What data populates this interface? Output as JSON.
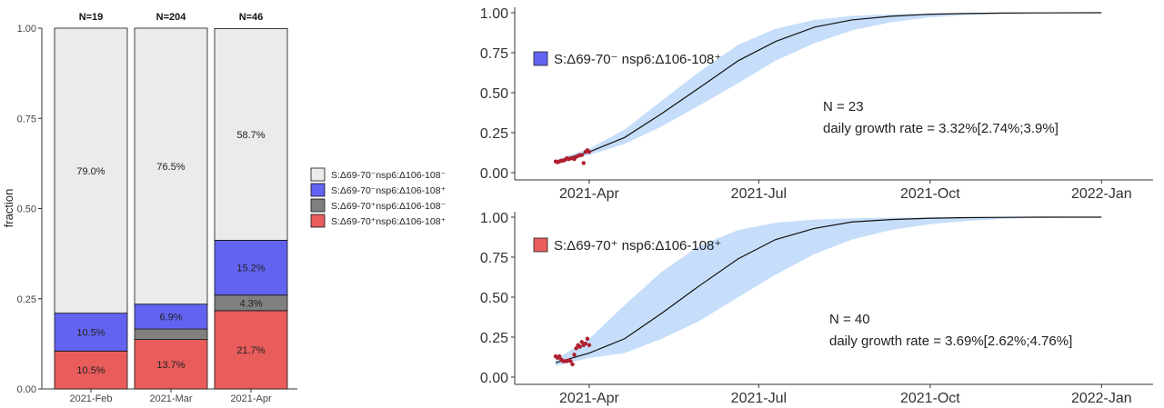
{
  "chart_data": [
    {
      "type": "bar",
      "stacked": true,
      "ylabel": "fraction",
      "ylim": [
        0,
        1
      ],
      "yticks": [
        "0.00",
        "0.25",
        "0.50",
        "0.75",
        "1.00"
      ],
      "categories": [
        "2021-Feb",
        "2021-Mar",
        "2021-Apr"
      ],
      "totals": [
        "N=19",
        "N=204",
        "N=46"
      ],
      "series": [
        {
          "name": "S:Δ69-70⁺nsp6:Δ106-108⁺",
          "color": "#e85c5c",
          "values": [
            0.105,
            0.137,
            0.217
          ],
          "labels": [
            "10.5%",
            "13.7%",
            "21.7%"
          ]
        },
        {
          "name": "S:Δ69-70⁺nsp6:Δ106-108⁻",
          "color": "#808080",
          "values": [
            0.0,
            0.029,
            0.043
          ],
          "labels": [
            "",
            "",
            "4.3%"
          ]
        },
        {
          "name": "S:Δ69-70⁻nsp6:Δ106-108⁺",
          "color": "#6363f2",
          "values": [
            0.105,
            0.069,
            0.152
          ],
          "labels": [
            "10.5%",
            "6.9%",
            "15.2%"
          ]
        },
        {
          "name": "S:Δ69-70⁻nsp6:Δ106-108⁻",
          "color": "#ebebeb",
          "values": [
            0.79,
            0.765,
            0.587
          ],
          "labels": [
            "79.0%",
            "76.5%",
            "58.7%"
          ]
        }
      ],
      "legend_order": [
        3,
        2,
        1,
        0
      ],
      "legend_position": "right"
    },
    {
      "type": "line",
      "legend_label": "S:Δ69-70⁻ nsp6:Δ106-108⁺",
      "legend_color": "#6363f2",
      "annotation_n": "N = 23",
      "annotation_rate": "daily growth rate = 3.32%[2.74%;3.9%]",
      "xlim": [
        "2021-02-20",
        "2022-01-15"
      ],
      "ylim": [
        0,
        1
      ],
      "yticks": [
        "0.00",
        "0.25",
        "0.50",
        "0.75",
        "1.00"
      ],
      "xticks": [
        {
          "date": "2021-04-01",
          "label": "2021-Apr"
        },
        {
          "date": "2021-07-01",
          "label": "2021-Jul"
        },
        {
          "date": "2021-10-01",
          "label": "2021-Oct"
        },
        {
          "date": "2022-01-01",
          "label": "2022-Jan"
        }
      ],
      "fit_curve": {
        "x": [
          "2021-03-14",
          "2021-04-01",
          "2021-04-20",
          "2021-05-10",
          "2021-05-30",
          "2021-06-20",
          "2021-07-10",
          "2021-07-31",
          "2021-08-20",
          "2021-09-10",
          "2021-09-30",
          "2021-10-20",
          "2021-11-10",
          "2021-12-01",
          "2022-01-01"
        ],
        "y": [
          0.07,
          0.13,
          0.22,
          0.37,
          0.53,
          0.7,
          0.82,
          0.91,
          0.955,
          0.978,
          0.99,
          0.995,
          0.998,
          0.999,
          1.0
        ]
      },
      "ci_upper": [
        0.08,
        0.15,
        0.27,
        0.45,
        0.63,
        0.8,
        0.9,
        0.955,
        0.98,
        0.99,
        0.996,
        0.998,
        0.999,
        1.0,
        1.0
      ],
      "ci_lower": [
        0.06,
        0.11,
        0.18,
        0.29,
        0.42,
        0.56,
        0.7,
        0.81,
        0.89,
        0.94,
        0.97,
        0.985,
        0.994,
        0.998,
        1.0
      ],
      "observed": {
        "x": [
          "2021-03-14",
          "2021-03-15",
          "2021-03-16",
          "2021-03-17",
          "2021-03-18",
          "2021-03-19",
          "2021-03-20",
          "2021-03-21",
          "2021-03-22",
          "2021-03-23",
          "2021-03-24",
          "2021-03-25",
          "2021-03-26",
          "2021-03-27",
          "2021-03-28",
          "2021-03-29",
          "2021-03-30",
          "2021-03-31",
          "2021-04-01"
        ],
        "y": [
          0.07,
          0.065,
          0.07,
          0.075,
          0.075,
          0.08,
          0.09,
          0.085,
          0.09,
          0.09,
          0.085,
          0.1,
          0.105,
          0.11,
          0.11,
          0.06,
          0.13,
          0.14,
          0.13
        ]
      }
    },
    {
      "type": "line",
      "legend_label": "S:Δ69-70⁺ nsp6:Δ106-108⁺",
      "legend_color": "#e85c5c",
      "annotation_n": "N = 40",
      "annotation_rate": "daily growth rate = 3.69%[2.62%;4.76%]",
      "xlim": [
        "2021-02-20",
        "2022-01-15"
      ],
      "ylim": [
        0,
        1
      ],
      "yticks": [
        "0.00",
        "0.25",
        "0.50",
        "0.75",
        "1.00"
      ],
      "xticks": [
        {
          "date": "2021-04-01",
          "label": "2021-Apr"
        },
        {
          "date": "2021-07-01",
          "label": "2021-Jul"
        },
        {
          "date": "2021-10-01",
          "label": "2021-Oct"
        },
        {
          "date": "2022-01-01",
          "label": "2022-Jan"
        }
      ],
      "fit_curve": {
        "x": [
          "2021-03-14",
          "2021-04-01",
          "2021-04-20",
          "2021-05-10",
          "2021-05-30",
          "2021-06-20",
          "2021-07-10",
          "2021-07-31",
          "2021-08-20",
          "2021-09-10",
          "2021-09-30",
          "2021-10-20",
          "2021-11-10",
          "2021-12-01",
          "2022-01-01"
        ],
        "y": [
          0.09,
          0.15,
          0.24,
          0.4,
          0.57,
          0.74,
          0.86,
          0.93,
          0.97,
          0.985,
          0.993,
          0.997,
          0.999,
          1.0,
          1.0
        ]
      },
      "ci_upper": [
        0.11,
        0.24,
        0.45,
        0.66,
        0.82,
        0.92,
        0.965,
        0.985,
        0.993,
        0.997,
        0.999,
        1.0,
        1.0,
        1.0,
        1.0
      ],
      "ci_lower": [
        0.07,
        0.12,
        0.15,
        0.24,
        0.35,
        0.5,
        0.64,
        0.77,
        0.86,
        0.92,
        0.955,
        0.976,
        0.99,
        0.996,
        1.0
      ],
      "observed": {
        "x": [
          "2021-03-14",
          "2021-03-15",
          "2021-03-16",
          "2021-03-17",
          "2021-03-18",
          "2021-03-19",
          "2021-03-20",
          "2021-03-21",
          "2021-03-22",
          "2021-03-23",
          "2021-03-24",
          "2021-03-25",
          "2021-03-26",
          "2021-03-27",
          "2021-03-28",
          "2021-03-29",
          "2021-03-30",
          "2021-03-31",
          "2021-04-01"
        ],
        "y": [
          0.13,
          0.12,
          0.13,
          0.11,
          0.1,
          0.1,
          0.1,
          0.105,
          0.1,
          0.08,
          0.14,
          0.18,
          0.2,
          0.19,
          0.22,
          0.2,
          0.21,
          0.24,
          0.2
        ]
      }
    }
  ]
}
